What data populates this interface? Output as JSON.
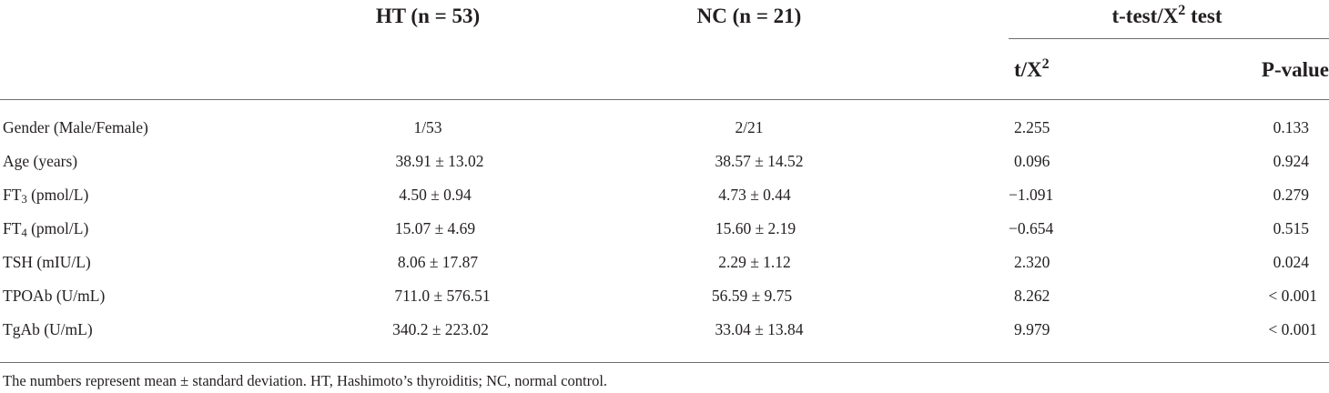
{
  "headers": {
    "ht": "HT (n = 53)",
    "nc": "NC (n = 21)",
    "test_group_base": "t-test/X",
    "test_group_sup": "2",
    "test_group_suffix": " test",
    "stat_base": "t/X",
    "stat_sup": "2",
    "pvalue": "P-value"
  },
  "rows": [
    {
      "label_main": "Gender (Male/Female)",
      "label_sub": "",
      "label_rest": "",
      "ht": "1/53",
      "nc": "2/21",
      "stat": "2.255",
      "p": "0.133"
    },
    {
      "label_main": "Age (years)",
      "label_sub": "",
      "label_rest": "",
      "ht": "38.91 ± 13.02",
      "nc": "38.57 ± 14.52",
      "stat": "0.096",
      "p": "0.924"
    },
    {
      "label_main": "FT",
      "label_sub": "3",
      "label_rest": " (pmol/L)",
      "ht": "4.50 ± 0.94",
      "nc": "4.73 ± 0.44",
      "stat": "−1.091",
      "p": "0.279"
    },
    {
      "label_main": "FT",
      "label_sub": "4",
      "label_rest": " (pmol/L)",
      "ht": "15.07 ± 4.69",
      "nc": "15.60 ± 2.19",
      "stat": "−0.654",
      "p": "0.515"
    },
    {
      "label_main": "TSH (mIU/L)",
      "label_sub": "",
      "label_rest": "",
      "ht": "8.06 ± 17.87",
      "nc": "2.29 ± 1.12",
      "stat": "2.320",
      "p": "0.024"
    },
    {
      "label_main": "TPOAb (U/mL)",
      "label_sub": "",
      "label_rest": "",
      "ht": "711.0 ± 576.51",
      "nc": "56.59 ± 9.75",
      "stat": "8.262",
      "p": "< 0.001"
    },
    {
      "label_main": "TgAb (U/mL)",
      "label_sub": "",
      "label_rest": "",
      "ht": "340.2 ± 223.02",
      "nc": "33.04 ± 13.84",
      "stat": "9.979",
      "p": "< 0.001"
    }
  ],
  "footnote": "The numbers represent mean ± standard deviation. HT, Hashimoto’s thyroiditis; NC, normal control."
}
